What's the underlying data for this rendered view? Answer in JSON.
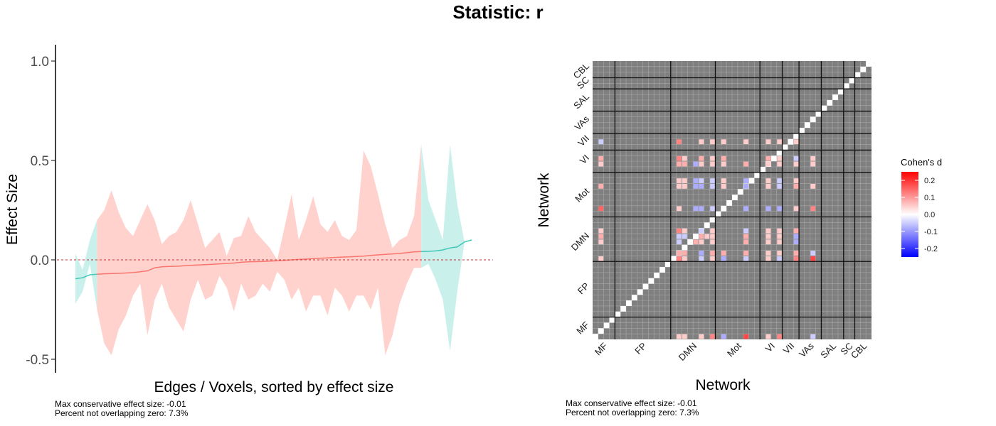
{
  "title": "Statistic: r",
  "colors": {
    "red_fill": "#ffcdc9",
    "teal_fill": "#c4eeea",
    "red_line": "#f8766d",
    "teal_line": "#41c7b7",
    "zero_line": "#c43030",
    "matrix_bg": "#7f7f7f",
    "diag": "#ffffff"
  },
  "chart_data": [
    {
      "type": "area",
      "title": "",
      "xlabel": "Edges / Voxels, sorted by effect size",
      "ylabel": "Effect Size",
      "ylim": [
        -0.55,
        1.07
      ],
      "yticks": [
        -0.5,
        0.0,
        0.5,
        1.0
      ],
      "ytick_labels": [
        "-0.5",
        "0.0",
        "0.5",
        "1.0"
      ],
      "x": [
        1,
        2,
        3,
        4,
        5,
        6,
        7,
        8,
        9,
        10,
        11,
        12,
        13,
        14,
        15,
        16,
        17,
        18,
        19,
        20,
        21,
        22,
        23,
        24,
        25,
        26,
        27,
        28,
        29,
        30,
        31,
        32,
        33,
        34,
        35,
        36,
        37,
        38,
        39,
        40,
        41,
        42,
        43,
        44,
        45,
        46,
        47,
        48,
        49,
        50,
        51,
        52,
        53,
        54,
        55,
        56
      ],
      "series": [
        {
          "estimate": [
            -0.095,
            -0.09,
            -0.075,
            -0.072,
            -0.07,
            -0.069,
            -0.068,
            -0.066,
            -0.064,
            -0.06,
            -0.055,
            -0.04,
            -0.035,
            -0.033,
            -0.032,
            -0.03,
            -0.028,
            -0.026,
            -0.024,
            -0.022,
            -0.02,
            -0.018,
            -0.016,
            -0.012,
            -0.01,
            -0.009,
            -0.008,
            -0.006,
            -0.005,
            -0.003,
            0.0,
            0.002,
            0.004,
            0.006,
            0.008,
            0.01,
            0.012,
            0.014,
            0.015,
            0.017,
            0.019,
            0.022,
            0.025,
            0.028,
            0.03,
            0.032,
            0.036,
            0.04,
            0.042,
            0.043,
            0.045,
            0.05,
            0.06,
            0.065,
            0.09,
            0.1
          ],
          "lower": [
            -0.22,
            -0.16,
            -0.02,
            -0.25,
            -0.42,
            -0.48,
            -0.35,
            -0.28,
            -0.18,
            -0.12,
            -0.38,
            -0.2,
            -0.12,
            -0.24,
            -0.3,
            -0.36,
            -0.2,
            -0.1,
            -0.2,
            -0.18,
            -0.08,
            -0.14,
            -0.26,
            -0.12,
            -0.2,
            -0.18,
            -0.12,
            -0.16,
            -0.06,
            -0.1,
            -0.2,
            -0.14,
            -0.26,
            -0.18,
            -0.18,
            -0.28,
            -0.14,
            -0.18,
            -0.26,
            -0.18,
            -0.18,
            -0.25,
            -0.14,
            -0.48,
            -0.38,
            -0.22,
            -0.12,
            -0.04,
            -0.04,
            -0.02,
            -0.1,
            -0.2,
            -0.46,
            -0.16,
            0.09,
            0.1
          ],
          "upper": [
            0.03,
            -0.05,
            0.1,
            0.2,
            0.25,
            0.35,
            0.24,
            0.16,
            0.12,
            0.2,
            0.28,
            0.2,
            0.08,
            0.12,
            0.14,
            0.2,
            0.3,
            0.18,
            0.06,
            0.1,
            0.14,
            0.02,
            0.11,
            0.12,
            0.22,
            0.14,
            0.1,
            0.06,
            0.0,
            0.16,
            0.33,
            0.1,
            0.2,
            0.32,
            0.18,
            0.14,
            0.2,
            0.12,
            0.1,
            0.15,
            0.55,
            0.47,
            0.33,
            0.18,
            0.06,
            0.1,
            0.12,
            0.22,
            0.58,
            0.3,
            0.2,
            0.1,
            0.58,
            0.28,
            0.09,
            0.1
          ],
          "significant": [
            true,
            true,
            true,
            false,
            false,
            false,
            false,
            false,
            false,
            false,
            false,
            false,
            false,
            false,
            false,
            false,
            false,
            false,
            false,
            false,
            false,
            false,
            false,
            false,
            false,
            false,
            false,
            false,
            false,
            false,
            false,
            false,
            false,
            false,
            false,
            false,
            false,
            false,
            false,
            false,
            false,
            false,
            false,
            false,
            false,
            false,
            false,
            false,
            true,
            true,
            true,
            true,
            true,
            true,
            true,
            true
          ]
        }
      ],
      "annotations": [
        "Max conservative effect size: -0.01",
        "Percent not overlapping zero: 7.3%"
      ]
    },
    {
      "type": "heatmap",
      "title": "",
      "xlabel": "Network",
      "ylabel": "Network",
      "networks": [
        "MF",
        "FP",
        "DMN",
        "Mot",
        "VI",
        "VII",
        "VAs",
        "SAL",
        "SC",
        "CBL"
      ],
      "network_sizes": [
        4,
        10,
        8,
        8,
        4,
        3,
        4,
        4,
        2,
        3
      ],
      "legend": {
        "title": "Cohen's d",
        "ticks": [
          0.2,
          0.1,
          0.0,
          -0.1,
          -0.2
        ],
        "tick_labels": [
          "0.2",
          "0.1",
          "0.0",
          "-0.1",
          "-0.2"
        ],
        "range": [
          -0.25,
          0.25
        ],
        "placement": "right"
      },
      "cells": [
        {
          "row": 1,
          "col": 16,
          "d": 0.05
        },
        {
          "row": 1,
          "col": 17,
          "d": 0.05
        },
        {
          "row": 1,
          "col": 20,
          "d": 0.05
        },
        {
          "row": 1,
          "col": 22,
          "d": 0.12
        },
        {
          "row": 1,
          "col": 24,
          "d": -0.08
        },
        {
          "row": 1,
          "col": 28,
          "d": 0.18
        },
        {
          "row": 1,
          "col": 32,
          "d": 0.05
        },
        {
          "row": 1,
          "col": 34,
          "d": 0.12
        },
        {
          "row": 1,
          "col": 40,
          "d": -0.05
        },
        {
          "row": 15,
          "col": 2,
          "d": 0.05
        },
        {
          "row": 15,
          "col": 16,
          "d": 0.12
        },
        {
          "row": 15,
          "col": 17,
          "d": 0.05
        },
        {
          "row": 15,
          "col": 20,
          "d": -0.05
        },
        {
          "row": 15,
          "col": 22,
          "d": 0.05
        },
        {
          "row": 15,
          "col": 24,
          "d": -0.08
        },
        {
          "row": 15,
          "col": 28,
          "d": -0.05
        },
        {
          "row": 15,
          "col": 32,
          "d": 0.05
        },
        {
          "row": 15,
          "col": 34,
          "d": -0.05
        },
        {
          "row": 15,
          "col": 37,
          "d": 0.12
        },
        {
          "row": 15,
          "col": 40,
          "d": 0.18
        },
        {
          "row": 16,
          "col": 16,
          "d": 0.08
        },
        {
          "row": 16,
          "col": 17,
          "d": 0.08
        },
        {
          "row": 16,
          "col": 20,
          "d": -0.08
        },
        {
          "row": 16,
          "col": 22,
          "d": 0.08
        },
        {
          "row": 16,
          "col": 24,
          "d": 0.08
        },
        {
          "row": 16,
          "col": 28,
          "d": 0.08
        },
        {
          "row": 16,
          "col": 32,
          "d": 0.05
        },
        {
          "row": 16,
          "col": 34,
          "d": 0.05
        },
        {
          "row": 16,
          "col": 37,
          "d": 0.08
        },
        {
          "row": 16,
          "col": 40,
          "d": -0.05
        },
        {
          "row": 18,
          "col": 2,
          "d": 0.05
        },
        {
          "row": 18,
          "col": 16,
          "d": -0.05
        },
        {
          "row": 18,
          "col": 19,
          "d": 0.08
        },
        {
          "row": 18,
          "col": 20,
          "d": 0.05
        },
        {
          "row": 18,
          "col": 22,
          "d": 0.05
        },
        {
          "row": 18,
          "col": 28,
          "d": 0.08
        },
        {
          "row": 18,
          "col": 32,
          "d": 0.05
        },
        {
          "row": 18,
          "col": 34,
          "d": 0.05
        },
        {
          "row": 18,
          "col": 37,
          "d": -0.08
        },
        {
          "row": 19,
          "col": 2,
          "d": 0.08
        },
        {
          "row": 19,
          "col": 16,
          "d": -0.05
        },
        {
          "row": 19,
          "col": 17,
          "d": -0.05
        },
        {
          "row": 19,
          "col": 20,
          "d": 0.08
        },
        {
          "row": 19,
          "col": 21,
          "d": 0.05
        },
        {
          "row": 19,
          "col": 22,
          "d": 0.05
        },
        {
          "row": 19,
          "col": 28,
          "d": 0.08
        },
        {
          "row": 19,
          "col": 32,
          "d": 0.05
        },
        {
          "row": 19,
          "col": 34,
          "d": 0.05
        },
        {
          "row": 19,
          "col": 37,
          "d": -0.08
        },
        {
          "row": 20,
          "col": 2,
          "d": 0.05
        },
        {
          "row": 20,
          "col": 16,
          "d": 0.12
        },
        {
          "row": 20,
          "col": 17,
          "d": 0.05
        },
        {
          "row": 20,
          "col": 20,
          "d": -0.05
        },
        {
          "row": 20,
          "col": 22,
          "d": 0.05
        },
        {
          "row": 20,
          "col": 28,
          "d": -0.05
        },
        {
          "row": 20,
          "col": 32,
          "d": 0.05
        },
        {
          "row": 20,
          "col": 34,
          "d": 0.05
        },
        {
          "row": 20,
          "col": 37,
          "d": 0.08
        },
        {
          "row": 24,
          "col": 2,
          "d": 0.15
        },
        {
          "row": 24,
          "col": 16,
          "d": 0.05
        },
        {
          "row": 24,
          "col": 19,
          "d": -0.08
        },
        {
          "row": 24,
          "col": 20,
          "d": -0.08
        },
        {
          "row": 24,
          "col": 22,
          "d": -0.05
        },
        {
          "row": 24,
          "col": 28,
          "d": -0.08
        },
        {
          "row": 24,
          "col": 32,
          "d": -0.08
        },
        {
          "row": 24,
          "col": 34,
          "d": -0.08
        },
        {
          "row": 24,
          "col": 37,
          "d": 0.05
        },
        {
          "row": 24,
          "col": 40,
          "d": 0.12
        },
        {
          "row": 28,
          "col": 2,
          "d": 0.08
        },
        {
          "row": 28,
          "col": 16,
          "d": 0.05
        },
        {
          "row": 28,
          "col": 17,
          "d": 0.05
        },
        {
          "row": 28,
          "col": 19,
          "d": -0.08
        },
        {
          "row": 28,
          "col": 20,
          "d": -0.08
        },
        {
          "row": 28,
          "col": 22,
          "d": -0.05
        },
        {
          "row": 28,
          "col": 24,
          "d": 0.05
        },
        {
          "row": 28,
          "col": 28,
          "d": -0.08
        },
        {
          "row": 28,
          "col": 32,
          "d": 0.05
        },
        {
          "row": 28,
          "col": 34,
          "d": -0.05
        },
        {
          "row": 28,
          "col": 37,
          "d": 0.08
        },
        {
          "row": 28,
          "col": 40,
          "d": 0.05
        },
        {
          "row": 29,
          "col": 16,
          "d": 0.05
        },
        {
          "row": 29,
          "col": 17,
          "d": 0.05
        },
        {
          "row": 29,
          "col": 19,
          "d": -0.08
        },
        {
          "row": 29,
          "col": 20,
          "d": -0.05
        },
        {
          "row": 29,
          "col": 22,
          "d": -0.05
        },
        {
          "row": 29,
          "col": 24,
          "d": 0.05
        },
        {
          "row": 29,
          "col": 28,
          "d": -0.08
        },
        {
          "row": 29,
          "col": 32,
          "d": 0.05
        },
        {
          "row": 29,
          "col": 34,
          "d": -0.05
        },
        {
          "row": 29,
          "col": 37,
          "d": 0.05
        },
        {
          "row": 32,
          "col": 2,
          "d": 0.05
        },
        {
          "row": 32,
          "col": 16,
          "d": 0.08
        },
        {
          "row": 32,
          "col": 17,
          "d": 0.08
        },
        {
          "row": 32,
          "col": 19,
          "d": -0.08
        },
        {
          "row": 32,
          "col": 20,
          "d": 0.05
        },
        {
          "row": 32,
          "col": 22,
          "d": 0.05
        },
        {
          "row": 32,
          "col": 24,
          "d": 0.05
        },
        {
          "row": 32,
          "col": 28,
          "d": 0.08
        },
        {
          "row": 32,
          "col": 32,
          "d": 0.05
        },
        {
          "row": 32,
          "col": 34,
          "d": 0.05
        },
        {
          "row": 32,
          "col": 37,
          "d": 0.05
        },
        {
          "row": 32,
          "col": 40,
          "d": 0.05
        },
        {
          "row": 33,
          "col": 2,
          "d": 0.08
        },
        {
          "row": 33,
          "col": 16,
          "d": 0.12
        },
        {
          "row": 33,
          "col": 17,
          "d": 0.05
        },
        {
          "row": 33,
          "col": 20,
          "d": 0.08
        },
        {
          "row": 33,
          "col": 22,
          "d": 0.05
        },
        {
          "row": 33,
          "col": 24,
          "d": 0.08
        },
        {
          "row": 33,
          "col": 32,
          "d": 0.08
        },
        {
          "row": 33,
          "col": 34,
          "d": 0.05
        },
        {
          "row": 33,
          "col": 37,
          "d": -0.05
        },
        {
          "row": 33,
          "col": 40,
          "d": 0.05
        },
        {
          "row": 36,
          "col": 2,
          "d": -0.05
        },
        {
          "row": 36,
          "col": 16,
          "d": 0.12
        },
        {
          "row": 36,
          "col": 20,
          "d": 0.05
        },
        {
          "row": 36,
          "col": 22,
          "d": 0.05
        },
        {
          "row": 36,
          "col": 24,
          "d": 0.05
        },
        {
          "row": 36,
          "col": 28,
          "d": 0.05
        },
        {
          "row": 36,
          "col": 32,
          "d": 0.05
        },
        {
          "row": 36,
          "col": 34,
          "d": 0.05
        },
        {
          "row": 36,
          "col": 37,
          "d": 0.05
        }
      ],
      "annotations": [
        "Max conservative effect size: -0.01",
        "Percent not overlapping zero: 7.3%"
      ]
    }
  ]
}
